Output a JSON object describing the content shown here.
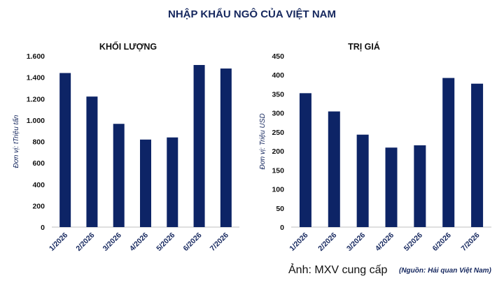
{
  "title": "NHẬP KHẨU NGÔ CỦA VIỆT NAM",
  "caption": "Ảnh: MXV cung cấp",
  "source": "(Nguồn: Hải quan Việt Nam)",
  "colors": {
    "bar": "#0d2466",
    "title": "#15275e"
  },
  "chart_data": [
    {
      "type": "bar",
      "title": "KHỐI LƯỢNG",
      "ylabel": "Đơn vị: tTriệu tấn",
      "xlabel": "",
      "categories": [
        "1/2026",
        "2/2026",
        "3/2026",
        "4/2026",
        "5/2026",
        "6/2026",
        "7/2026"
      ],
      "values": [
        1440,
        1220,
        965,
        818,
        838,
        1515,
        1482
      ],
      "ylim": [
        0,
        1600
      ],
      "yticks": [
        0,
        200,
        400,
        600,
        800,
        1000,
        1200,
        1400,
        1600
      ],
      "ytick_labels": [
        "0",
        "200",
        "400",
        "600",
        "800",
        "1.000",
        "1.200",
        "1.400",
        "1.600"
      ],
      "grid": false,
      "legend": "none"
    },
    {
      "type": "bar",
      "title": "TRỊ GIÁ",
      "ylabel": "Đơn vị: Triệu USD",
      "xlabel": "",
      "categories": [
        "1/2026",
        "2/2026",
        "3/2026",
        "4/2026",
        "5/2026",
        "6/2026",
        "7/2026"
      ],
      "values": [
        352,
        304,
        243,
        209,
        215,
        392,
        377
      ],
      "ylim": [
        0,
        450
      ],
      "yticks": [
        0,
        50,
        100,
        150,
        200,
        250,
        300,
        350,
        400,
        450
      ],
      "ytick_labels": [
        "0",
        "50",
        "100",
        "150",
        "200",
        "250",
        "300",
        "350",
        "400",
        "450"
      ],
      "grid": false,
      "legend": "none"
    }
  ]
}
